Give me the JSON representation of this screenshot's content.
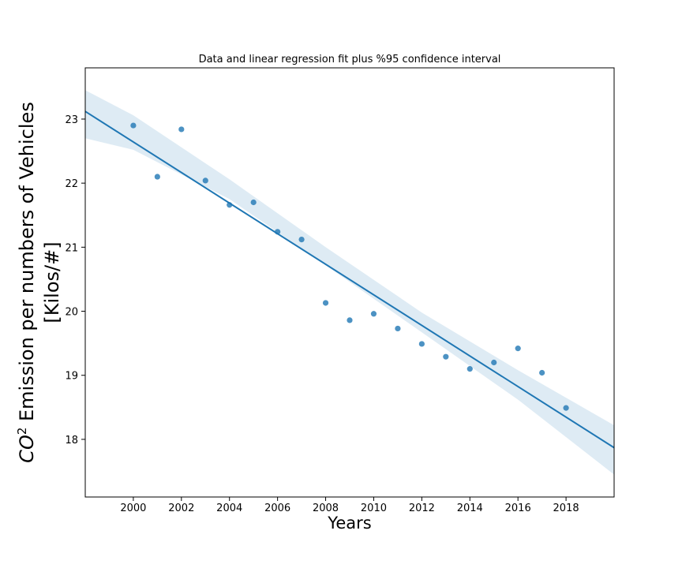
{
  "chart_data": {
    "type": "scatter",
    "title": "Data and linear regression fit plus %95 confidence interval",
    "xlabel": "Years",
    "ylabel_line1_base": "CO",
    "ylabel_line1_sup": "2",
    "ylabel_line1_rest": " Emission per numbers of Vehicles",
    "ylabel_line2": "[Kilos/#]",
    "xlim": [
      1998,
      2020
    ],
    "ylim": [
      17.1,
      23.8
    ],
    "xticks": [
      2000,
      2002,
      2004,
      2006,
      2008,
      2010,
      2012,
      2014,
      2016,
      2018
    ],
    "yticks": [
      18,
      19,
      20,
      21,
      22,
      23
    ],
    "grid": false,
    "series": [
      {
        "x": [
          2000,
          2001,
          2002,
          2003,
          2004,
          2005,
          2006,
          2007,
          2008,
          2009,
          2010,
          2011,
          2012,
          2013,
          2014,
          2015,
          2016,
          2017,
          2018
        ],
        "y": [
          22.9,
          22.1,
          22.84,
          22.04,
          21.66,
          21.7,
          21.24,
          21.12,
          20.13,
          19.86,
          19.96,
          19.73,
          19.49,
          19.29,
          19.1,
          19.2,
          19.42,
          19.04,
          18.49
        ]
      }
    ],
    "fit_line": {
      "x": [
        1998,
        2020
      ],
      "y": [
        23.12,
        17.87
      ]
    },
    "confidence_band": {
      "x": [
        1998,
        2000,
        2004,
        2008,
        2012,
        2016,
        2020
      ],
      "upper": [
        23.45,
        23.06,
        22.06,
        21.0,
        19.98,
        19.08,
        18.22
      ],
      "lower": [
        22.7,
        22.52,
        21.75,
        20.72,
        19.67,
        18.62,
        17.45
      ]
    },
    "colors": {
      "points": "#1f77b4",
      "fit_line": "#1f77b4",
      "band": "#1f77b4"
    }
  }
}
